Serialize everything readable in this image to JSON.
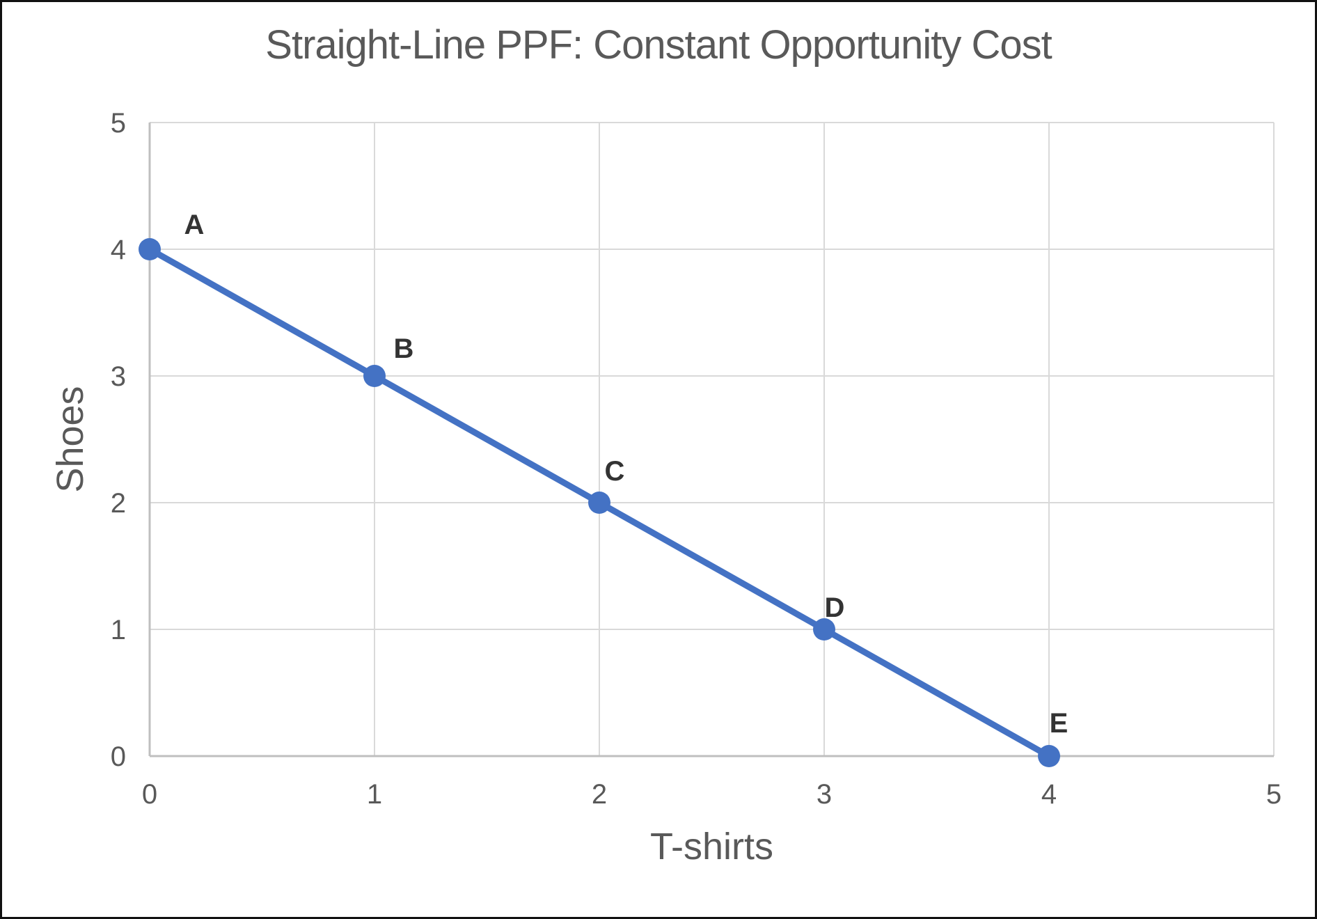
{
  "chart_data": {
    "type": "line",
    "title": "Straight-Line PPF: Constant Opportunity Cost",
    "xlabel": "T-shirts",
    "ylabel": "Shoes",
    "xlim": [
      0,
      5
    ],
    "ylim": [
      0,
      5
    ],
    "x_ticks": [
      "0",
      "1",
      "2",
      "3",
      "4",
      "5"
    ],
    "y_ticks": [
      "0",
      "1",
      "2",
      "3",
      "4",
      "5"
    ],
    "grid": true,
    "legend": "none",
    "points": [
      {
        "label": "A",
        "x": 0,
        "y": 4
      },
      {
        "label": "B",
        "x": 1,
        "y": 3
      },
      {
        "label": "C",
        "x": 2,
        "y": 2
      },
      {
        "label": "D",
        "x": 3,
        "y": 1
      },
      {
        "label": "E",
        "x": 4,
        "y": 0
      }
    ],
    "colors": {
      "line": "#4472C4",
      "marker": "#4472C4",
      "gridline": "#D9D9D9",
      "axis_line": "#BFBFBF",
      "tick_text": "#595959",
      "title_text": "#595959",
      "point_label_text": "#333333",
      "background": "#FFFFFF",
      "border": "#111111"
    }
  }
}
